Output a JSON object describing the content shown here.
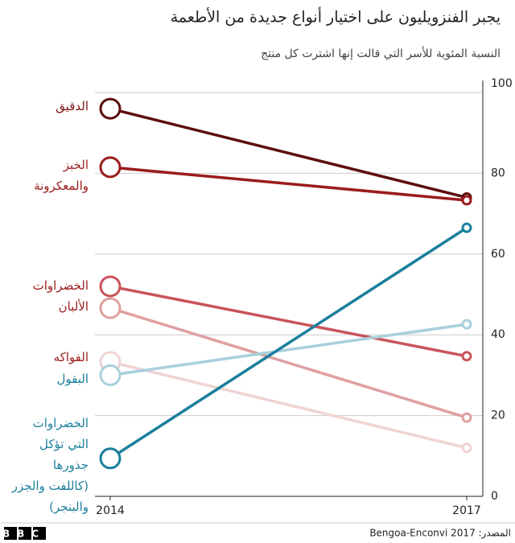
{
  "chart_data": {
    "type": "line",
    "title": "يجبر الفنزويليون على اختيار أنواع جديدة من الأطعمة",
    "subtitle": "النسبة المئوية للأسر التي قالت إنها اشترت كل منتج",
    "categories": [
      "2014",
      "2017"
    ],
    "ylim": [
      0,
      100
    ],
    "yticks": [
      0,
      20,
      40,
      60,
      80,
      100
    ],
    "grid": true,
    "series": [
      {
        "name": "الدقيق",
        "color": "#5c0f0f",
        "values": [
          96,
          74
        ]
      },
      {
        "name": "الخبز\nوالمعكرونة",
        "color": "#9b1c1c",
        "values": [
          81.5,
          73.3
        ]
      },
      {
        "name": "الخضراوات",
        "color": "#c9545a",
        "values": [
          52,
          34.7
        ]
      },
      {
        "name": "الألبان",
        "color": "#e0a0a0",
        "values": [
          46.6,
          19.5
        ]
      },
      {
        "name": "الفواكه",
        "color": "#efd3d3",
        "values": [
          33.3,
          12
        ]
      },
      {
        "name": "البقول",
        "color": "#a8d0dc",
        "values": [
          30,
          42.6
        ]
      },
      {
        "name": "الخضراوات\nالتي تؤكل\nجذورها\n(كاللفت والجزر\nوالبنجر)",
        "color": "#1a7f9c",
        "values": [
          9.4,
          66.5
        ]
      }
    ],
    "source": "المصدر: Bengoa-Enconvi 2017",
    "logo": "BBC"
  }
}
